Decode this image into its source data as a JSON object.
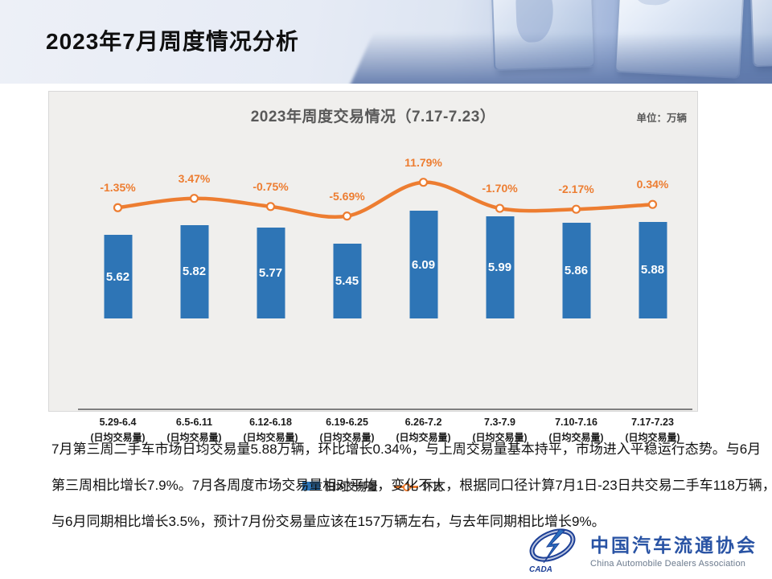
{
  "slide": {
    "title": "2023年7月周度情况分析"
  },
  "chart": {
    "title": "2023年周度交易情况（7.17-7.23）",
    "unit_label": "单位：万辆",
    "legend": {
      "bar_label": "日均交易量",
      "line_label": "环比"
    },
    "colors": {
      "bar": "#2E75B6",
      "line": "#ED7D31",
      "panel_bg": "#F0EFED"
    }
  },
  "chart_data": {
    "type": "bar",
    "title": "2023年周度交易情况（7.17-7.23）",
    "unit": "万辆",
    "categories": [
      "5.29-6.4",
      "6.5-6.11",
      "6.12-6.18",
      "6.19-6.25",
      "6.26-7.2",
      "7.3-7.9",
      "7.10-7.16",
      "7.17-7.23"
    ],
    "category_sublabel": "(日均交易量)",
    "bar_axis_min": 4.0,
    "bar_axis_max": 6.5,
    "legend_position": "bottom",
    "grid": false,
    "series": [
      {
        "name": "日均交易量",
        "type": "bar",
        "color": "#2E75B6",
        "values": [
          5.62,
          5.82,
          5.77,
          5.45,
          6.09,
          5.99,
          5.86,
          5.88
        ]
      },
      {
        "name": "环比",
        "type": "line",
        "color": "#ED7D31",
        "values": [
          -1.35,
          3.47,
          -0.75,
          -5.69,
          11.79,
          -1.7,
          -2.17,
          0.34
        ],
        "labels": [
          "-1.35%",
          "3.47%",
          "-0.75%",
          "-5.69%",
          "11.79%",
          "-1.70%",
          "-2.17%",
          "0.34%"
        ]
      }
    ]
  },
  "body": {
    "lines": [
      "7月第三周二手车市场日均交易量5.88万辆，环比增长0.34%，与上周交易量基本持平，市场进入平稳运行态势。与6月",
      "第三周相比增长7.9%。7月各周度市场交易量相对平均，变化不大，根据同口径计算7月1日-23日共交易二手车118万辆，",
      "与6月同期相比增长3.5%，预计7月份交易量应该在157万辆左右，与去年同期相比增长9%。"
    ]
  },
  "footer_logo": {
    "mark_text": "CADA",
    "name_cn": "中国汽车流通协会",
    "name_en": "China Automobile Dealers Association"
  }
}
